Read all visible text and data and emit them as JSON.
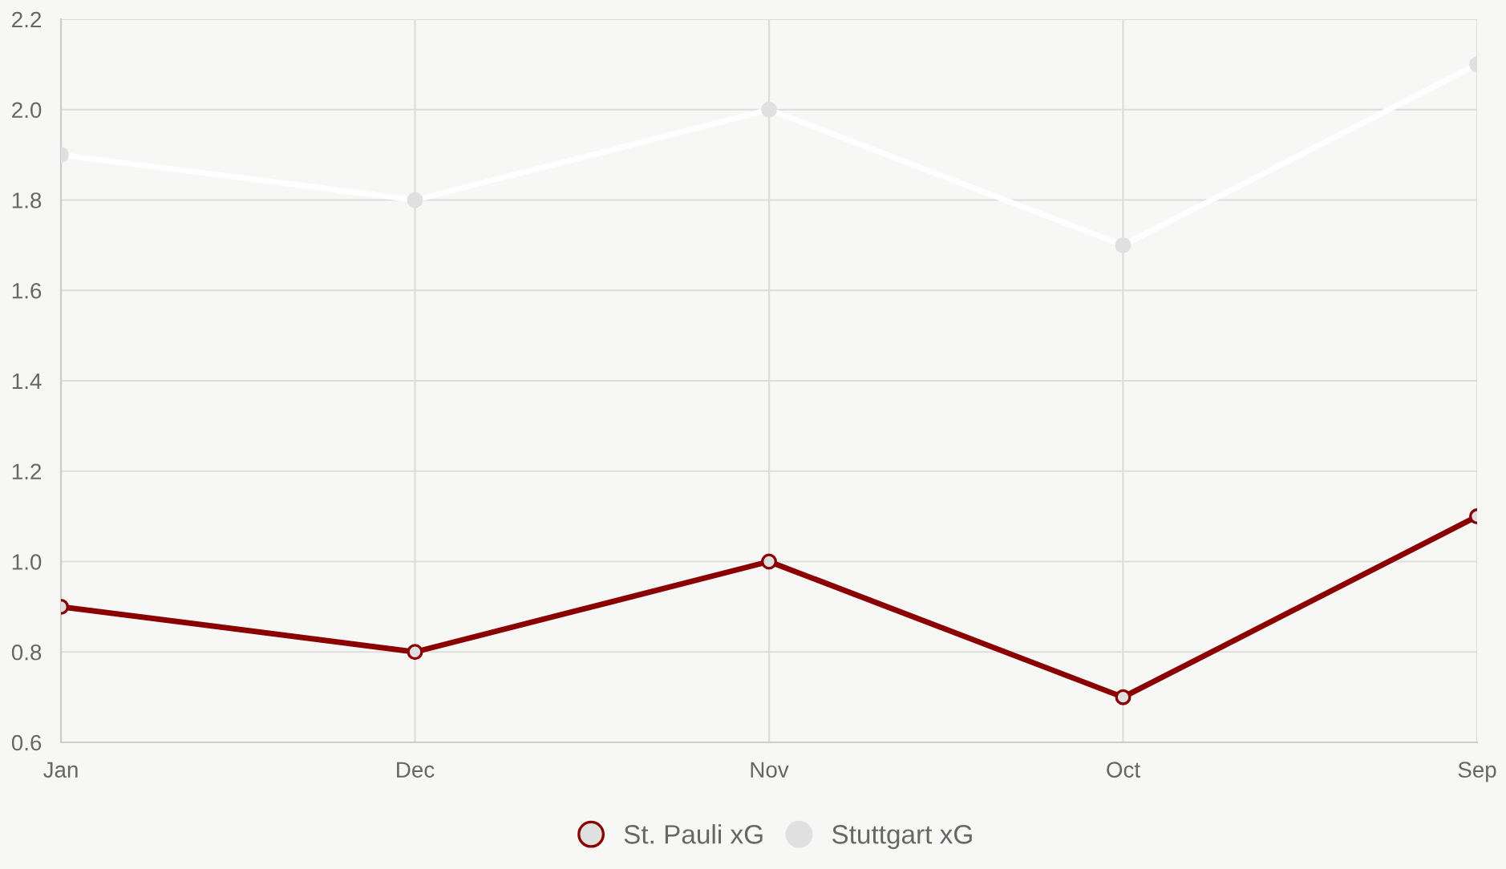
{
  "chart_data": {
    "type": "line",
    "categories": [
      "Jan",
      "Dec",
      "Nov",
      "Oct",
      "Sep"
    ],
    "series": [
      {
        "name": "St. Pauli xG",
        "color": "#8b0000",
        "values": [
          0.9,
          0.8,
          1.0,
          0.7,
          1.1
        ]
      },
      {
        "name": "Stuttgart xG",
        "color": "#ffffff",
        "values": [
          1.9,
          1.8,
          2.0,
          1.7,
          2.1
        ]
      }
    ],
    "ylim": [
      0.6,
      2.2
    ],
    "yticks": [
      0.6,
      0.8,
      {
        "value": 1.0,
        "label": "1.0"
      },
      1.2,
      1.4,
      1.6,
      1.8,
      {
        "value": 2.0,
        "label": "2.0"
      },
      2.2
    ],
    "grid": true,
    "legend": "bottom",
    "marker": "circle",
    "line_style": "solid"
  }
}
